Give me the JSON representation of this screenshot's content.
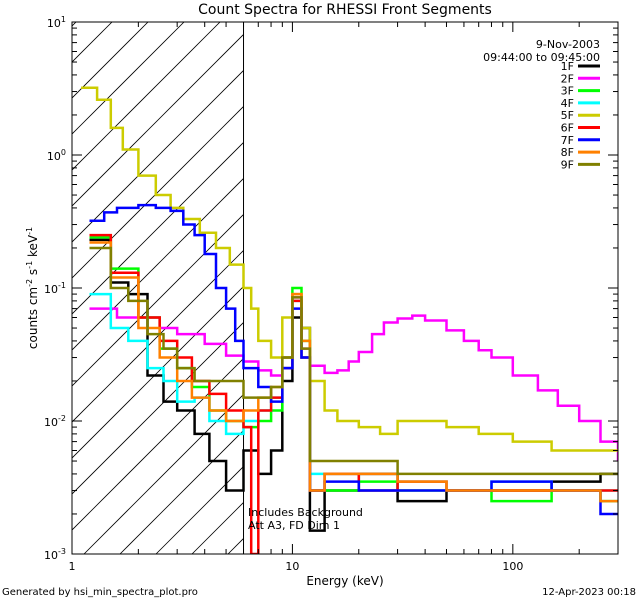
{
  "chart_data": {
    "type": "line",
    "title": "Count Spectra for RHESSI Front Segments",
    "xlabel": "Energy (keV)",
    "ylabel_parts": [
      "counts cm",
      "-2",
      " s",
      "-1",
      " keV",
      "-1"
    ],
    "xscale": "log",
    "yscale": "log",
    "xlim": [
      1,
      300
    ],
    "ylim": [
      0.001,
      10
    ],
    "x_ticks": [
      {
        "value": 1,
        "label": "1"
      },
      {
        "value": 10,
        "label": "10"
      },
      {
        "value": 100,
        "label": "100"
      }
    ],
    "y_ticks": [
      {
        "value": 10,
        "base": "10",
        "exp": "1"
      },
      {
        "value": 1,
        "base": "10",
        "exp": "0"
      },
      {
        "value": 0.1,
        "base": "10",
        "exp": "-1"
      },
      {
        "value": 0.01,
        "base": "10",
        "exp": "-2"
      },
      {
        "value": 0.001,
        "base": "10",
        "exp": "-3"
      }
    ],
    "hatch_region": {
      "x_max_keV": 6
    },
    "date": "9-Nov-2003",
    "time_range": "09:44:00 to 09:45:00",
    "annotation_lines": [
      "Includes Background",
      "Att A3, FD Dim 1"
    ],
    "series": [
      {
        "name": "1F",
        "color": "#000000",
        "points": [
          [
            1.2,
            0.23
          ],
          [
            1.5,
            0.11
          ],
          [
            1.8,
            0.09
          ],
          [
            2.2,
            0.022
          ],
          [
            2.6,
            0.014
          ],
          [
            3,
            0.012
          ],
          [
            3.6,
            0.008
          ],
          [
            4.2,
            0.005
          ],
          [
            5,
            0.003
          ],
          [
            6,
            0.006
          ],
          [
            7,
            0.004
          ],
          [
            8,
            0.006
          ],
          [
            9,
            0.02
          ],
          [
            10,
            0.06
          ],
          [
            11,
            0.05
          ],
          [
            12,
            0.0015
          ],
          [
            14,
            0.003
          ],
          [
            20,
            0.004
          ],
          [
            30,
            0.0025
          ],
          [
            50,
            0.003
          ],
          [
            80,
            0.003
          ],
          [
            150,
            0.0035
          ],
          [
            250,
            0.004
          ]
        ]
      },
      {
        "name": "2F",
        "color": "#ff00ff",
        "points": [
          [
            1.2,
            0.07
          ],
          [
            1.6,
            0.06
          ],
          [
            2,
            0.06
          ],
          [
            2.5,
            0.05
          ],
          [
            3,
            0.045
          ],
          [
            4,
            0.038
          ],
          [
            5,
            0.031
          ],
          [
            6,
            0.028
          ],
          [
            7,
            0.024
          ],
          [
            8,
            0.022
          ],
          [
            9,
            0.03
          ],
          [
            10,
            0.085
          ],
          [
            11,
            0.035
          ],
          [
            12,
            0.026
          ],
          [
            14,
            0.023
          ],
          [
            16,
            0.024
          ],
          [
            18,
            0.028
          ],
          [
            20,
            0.033
          ],
          [
            23,
            0.045
          ],
          [
            26,
            0.055
          ],
          [
            30,
            0.059
          ],
          [
            35,
            0.062
          ],
          [
            40,
            0.057
          ],
          [
            50,
            0.048
          ],
          [
            60,
            0.04
          ],
          [
            70,
            0.034
          ],
          [
            80,
            0.03
          ],
          [
            100,
            0.022
          ],
          [
            130,
            0.017
          ],
          [
            160,
            0.013
          ],
          [
            200,
            0.01
          ],
          [
            250,
            0.007
          ],
          [
            300,
            0.005
          ]
        ]
      },
      {
        "name": "3F",
        "color": "#00ff00",
        "points": [
          [
            1.2,
            0.24
          ],
          [
            1.5,
            0.14
          ],
          [
            2,
            0.06
          ],
          [
            2.5,
            0.035
          ],
          [
            3,
            0.025
          ],
          [
            3.5,
            0.018
          ],
          [
            4.2,
            0.012
          ],
          [
            5,
            0.01
          ],
          [
            6,
            0.009
          ],
          [
            7,
            0.01
          ],
          [
            8,
            0.012
          ],
          [
            9,
            0.03
          ],
          [
            10,
            0.1
          ],
          [
            11,
            0.04
          ],
          [
            12,
            0.003
          ],
          [
            14,
            0.003
          ],
          [
            20,
            0.0035
          ],
          [
            30,
            0.003
          ],
          [
            50,
            0.003
          ],
          [
            80,
            0.0025
          ],
          [
            150,
            0.003
          ],
          [
            250,
            0.0025
          ]
        ]
      },
      {
        "name": "4F",
        "color": "#00ffff",
        "points": [
          [
            1.2,
            0.09
          ],
          [
            1.5,
            0.05
          ],
          [
            1.8,
            0.04
          ],
          [
            2.2,
            0.025
          ],
          [
            2.6,
            0.02
          ],
          [
            3,
            0.014
          ],
          [
            3.6,
            0.015
          ],
          [
            4.2,
            0.01
          ],
          [
            5,
            0.008
          ],
          [
            6,
            0.01
          ],
          [
            7,
            0.012
          ],
          [
            8,
            0.015
          ],
          [
            9,
            0.025
          ],
          [
            10,
            0.08
          ],
          [
            11,
            0.03
          ],
          [
            12,
            0.004
          ],
          [
            14,
            0.004
          ],
          [
            20,
            0.003
          ],
          [
            30,
            0.0035
          ],
          [
            50,
            0.003
          ],
          [
            80,
            0.0035
          ],
          [
            150,
            0.003
          ],
          [
            250,
            0.003
          ]
        ]
      },
      {
        "name": "5F",
        "color": "#cccc00",
        "points": [
          [
            1.1,
            3.2
          ],
          [
            1.3,
            2.6
          ],
          [
            1.5,
            1.6
          ],
          [
            1.7,
            1.1
          ],
          [
            2,
            0.7
          ],
          [
            2.4,
            0.5
          ],
          [
            2.8,
            0.4
          ],
          [
            3.2,
            0.33
          ],
          [
            3.8,
            0.26
          ],
          [
            4.5,
            0.2
          ],
          [
            5.2,
            0.15
          ],
          [
            6,
            0.1
          ],
          [
            6.5,
            0.07
          ],
          [
            7,
            0.04
          ],
          [
            8,
            0.03
          ],
          [
            9,
            0.06
          ],
          [
            10,
            0.09
          ],
          [
            11,
            0.05
          ],
          [
            12,
            0.02
          ],
          [
            14,
            0.012
          ],
          [
            16,
            0.01
          ],
          [
            20,
            0.009
          ],
          [
            25,
            0.008
          ],
          [
            30,
            0.01
          ],
          [
            40,
            0.01
          ],
          [
            50,
            0.009
          ],
          [
            70,
            0.008
          ],
          [
            100,
            0.007
          ],
          [
            150,
            0.006
          ],
          [
            200,
            0.006
          ],
          [
            280,
            0.006
          ]
        ]
      },
      {
        "name": "6F",
        "color": "#ff0000",
        "points": [
          [
            1.2,
            0.25
          ],
          [
            1.5,
            0.13
          ],
          [
            2,
            0.06
          ],
          [
            2.5,
            0.04
          ],
          [
            3,
            0.03
          ],
          [
            3.5,
            0.02
          ],
          [
            4.2,
            0.016
          ],
          [
            5,
            0.012
          ],
          [
            6,
            0.009
          ],
          [
            6.5,
            0.001
          ],
          [
            7,
            0.012
          ],
          [
            8,
            0.015
          ],
          [
            9,
            0.025
          ],
          [
            10,
            0.08
          ],
          [
            11,
            0.03
          ],
          [
            12,
            0.003
          ],
          [
            14,
            0.004
          ],
          [
            20,
            0.003
          ],
          [
            30,
            0.0035
          ],
          [
            50,
            0.003
          ],
          [
            80,
            0.003
          ],
          [
            150,
            0.003
          ],
          [
            250,
            0.003
          ]
        ]
      },
      {
        "name": "7F",
        "color": "#0000ff",
        "points": [
          [
            1.2,
            0.32
          ],
          [
            1.4,
            0.37
          ],
          [
            1.6,
            0.4
          ],
          [
            2,
            0.42
          ],
          [
            2.4,
            0.4
          ],
          [
            2.8,
            0.38
          ],
          [
            3.2,
            0.3
          ],
          [
            3.6,
            0.25
          ],
          [
            4,
            0.18
          ],
          [
            4.5,
            0.1
          ],
          [
            5,
            0.07
          ],
          [
            5.5,
            0.04
          ],
          [
            6,
            0.025
          ],
          [
            7,
            0.018
          ],
          [
            8,
            0.014
          ],
          [
            9,
            0.025
          ],
          [
            10,
            0.07
          ],
          [
            11,
            0.03
          ],
          [
            12,
            0.003
          ],
          [
            14,
            0.0035
          ],
          [
            20,
            0.003
          ],
          [
            30,
            0.003
          ],
          [
            50,
            0.003
          ],
          [
            80,
            0.0035
          ],
          [
            150,
            0.003
          ],
          [
            250,
            0.002
          ]
        ]
      },
      {
        "name": "8F",
        "color": "#ff8000",
        "points": [
          [
            1.2,
            0.22
          ],
          [
            1.5,
            0.12
          ],
          [
            2,
            0.05
          ],
          [
            2.5,
            0.03
          ],
          [
            3,
            0.02
          ],
          [
            3.5,
            0.015
          ],
          [
            4.2,
            0.012
          ],
          [
            5,
            0.01
          ],
          [
            6,
            0.012
          ],
          [
            7,
            0.015
          ],
          [
            8,
            0.018
          ],
          [
            9,
            0.03
          ],
          [
            10,
            0.09
          ],
          [
            11,
            0.04
          ],
          [
            12,
            0.003
          ],
          [
            14,
            0.004
          ],
          [
            20,
            0.004
          ],
          [
            30,
            0.0035
          ],
          [
            50,
            0.003
          ],
          [
            80,
            0.003
          ],
          [
            150,
            0.003
          ],
          [
            250,
            0.0025
          ]
        ]
      },
      {
        "name": "9F",
        "color": "#808000",
        "points": [
          [
            1.2,
            0.2
          ],
          [
            1.5,
            0.1
          ],
          [
            1.8,
            0.08
          ],
          [
            2.2,
            0.045
          ],
          [
            2.6,
            0.035
          ],
          [
            3,
            0.025
          ],
          [
            3.6,
            0.02
          ],
          [
            4.2,
            0.02
          ],
          [
            5,
            0.02
          ],
          [
            6,
            0.015
          ],
          [
            7,
            0.015
          ],
          [
            8,
            0.018
          ],
          [
            9,
            0.03
          ],
          [
            10,
            0.085
          ],
          [
            11,
            0.035
          ],
          [
            12,
            0.005
          ],
          [
            14,
            0.005
          ],
          [
            20,
            0.005
          ],
          [
            30,
            0.004
          ],
          [
            50,
            0.004
          ],
          [
            80,
            0.004
          ],
          [
            150,
            0.004
          ],
          [
            250,
            0.004
          ]
        ]
      }
    ]
  },
  "footer": {
    "generated_by": "Generated by hsi_min_spectra_plot.pro",
    "timestamp": "12-Apr-2023 00:18"
  }
}
